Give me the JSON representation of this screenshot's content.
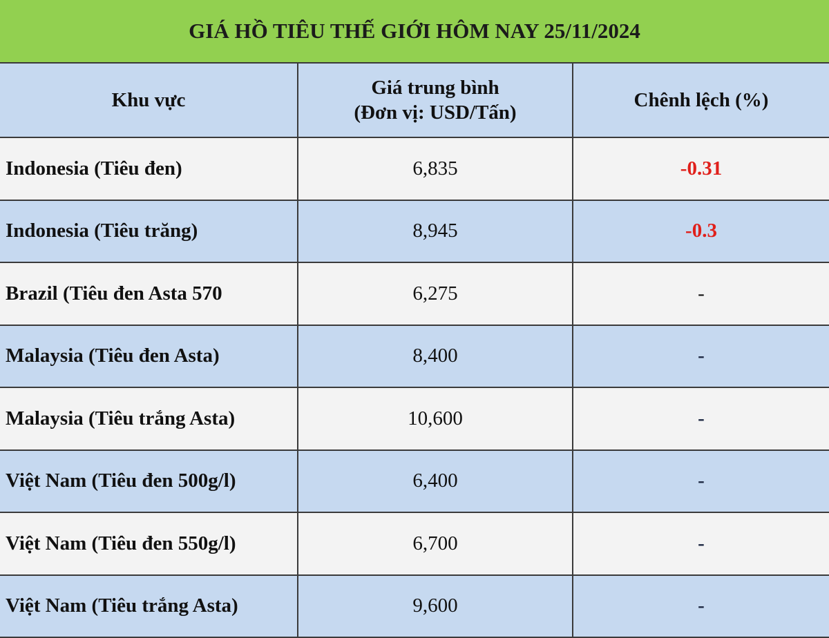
{
  "title": "GIÁ HỒ TIÊU THẾ GIỚI HÔM NAY 25/11/2024",
  "table": {
    "header": [
      "Khu vực",
      [
        "Giá trung bình",
        "(Đơn vị: USD/Tấn)"
      ],
      "Chênh lệch (%)"
    ],
    "rows": [
      [
        "Indonesia (Tiêu đen)",
        "6,835",
        "-0.31"
      ],
      [
        "Indonesia (Tiêu trăng)",
        "8,945",
        "-0.3"
      ],
      [
        "Brazil (Tiêu đen Asta 570",
        "6,275",
        "-"
      ],
      [
        "Malaysia (Tiêu đen Asta)",
        "8,400",
        "-"
      ],
      [
        "Malaysia (Tiêu trắng Asta)",
        "10,600",
        "-"
      ],
      [
        "Việt Nam (Tiêu đen 500g/l)",
        "6,400",
        "-"
      ],
      [
        "Việt Nam (Tiêu đen 550g/l)",
        "6,700",
        "-"
      ],
      [
        "Việt Nam (Tiêu trắng Asta)",
        "9,600",
        "-"
      ]
    ]
  }
}
